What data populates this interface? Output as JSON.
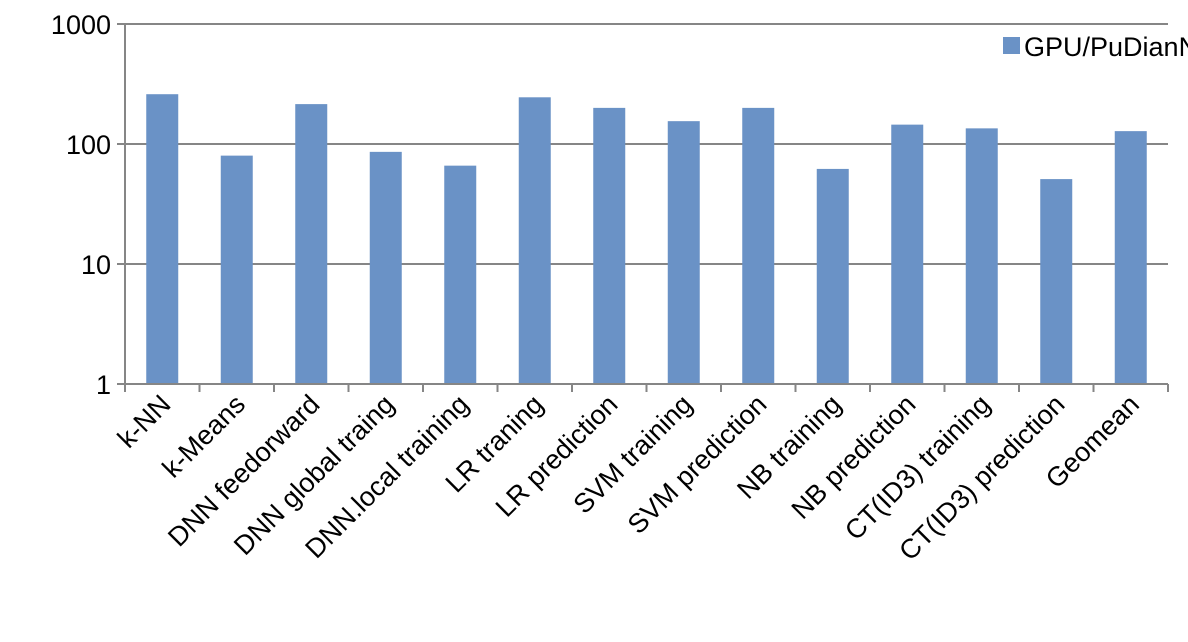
{
  "chart_data": {
    "type": "bar",
    "y_scale": "log",
    "ylim": [
      1,
      1000
    ],
    "y_ticks": [
      "1",
      "10",
      "100",
      "1000"
    ],
    "grid": true,
    "legend_position": "top-right",
    "bar_color": "#6a92c6",
    "series": [
      {
        "name": "GPU/PuDianNao",
        "values": [
          260,
          80,
          215,
          86,
          66,
          245,
          200,
          155,
          200,
          62,
          145,
          135,
          51,
          128
        ]
      }
    ],
    "categories": [
      "k-NN",
      "k-Means",
      "DNN feedorward",
      "DNN global traing",
      "DNN.local training",
      "LR traning",
      "LR prediction",
      "SVM training",
      "SVM prediction",
      "NB training",
      "NB prediction",
      "CT(ID3) training",
      "CT(ID3) prediction",
      "Geomean"
    ]
  }
}
